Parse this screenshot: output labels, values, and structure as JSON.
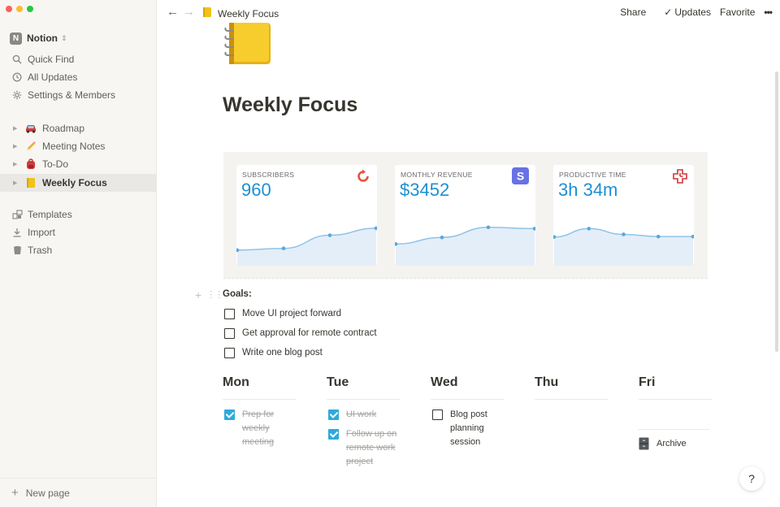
{
  "app": {
    "name": "Notion"
  },
  "window": {
    "controls": [
      "close",
      "minimize",
      "zoom"
    ],
    "control_colors": [
      "#ff5f57",
      "#febc2e",
      "#28c840"
    ]
  },
  "sidebar": {
    "workspace": {
      "initial": "N",
      "name": "Notion"
    },
    "nav": [
      {
        "label": "Quick Find",
        "icon": "search-icon"
      },
      {
        "label": "All Updates",
        "icon": "clock-icon"
      },
      {
        "label": "Settings & Members",
        "icon": "gear-icon"
      }
    ],
    "pages": [
      {
        "label": "Roadmap",
        "icon": "car-icon",
        "active": false
      },
      {
        "label": "Meeting Notes",
        "icon": "pencil-icon",
        "active": false
      },
      {
        "label": "To-Do",
        "icon": "backpack-icon",
        "active": false
      },
      {
        "label": "Weekly Focus",
        "icon": "notebook-icon",
        "active": true
      }
    ],
    "tools": [
      {
        "label": "Templates",
        "icon": "templates-icon"
      },
      {
        "label": "Import",
        "icon": "import-icon"
      },
      {
        "label": "Trash",
        "icon": "trash-icon"
      }
    ],
    "new_page": "New page"
  },
  "topbar": {
    "breadcrumb": "Weekly Focus",
    "share": "Share",
    "updates": "Updates",
    "favorite": "Favorite",
    "more": "•••"
  },
  "page": {
    "title": "Weekly Focus",
    "icon": "notebook-icon",
    "metrics": [
      {
        "label": "SUBSCRIBERS",
        "value": "960",
        "icon": "refresh-icon",
        "accent": "#e2533c",
        "trend": [
          0.28,
          0.32,
          0.62,
          0.78
        ]
      },
      {
        "label": "MONTHLY REVENUE",
        "value": "$3452",
        "icon": "stripe-icon",
        "accent": "#6772e5",
        "trend": [
          0.42,
          0.57,
          0.8,
          0.77
        ]
      },
      {
        "label": "PRODUCTIVE TIME",
        "value": "3h 34m",
        "icon": "rescuetime-icon",
        "accent": "#d0343a",
        "trend": [
          0.58,
          0.77,
          0.64,
          0.59,
          0.59
        ]
      }
    ],
    "goals": {
      "label": "Goals:",
      "items": [
        {
          "text": "Move UI project forward",
          "checked": false
        },
        {
          "text": "Get approval for remote contract",
          "checked": false
        },
        {
          "text": "Write one blog post",
          "checked": false
        }
      ]
    },
    "days": [
      {
        "name": "Mon",
        "tasks": [
          {
            "text": "Prep for weekly meeting",
            "checked": true
          }
        ]
      },
      {
        "name": "Tue",
        "tasks": [
          {
            "text": "UI work",
            "checked": true
          },
          {
            "text": "Follow up on remote work project",
            "checked": true
          }
        ]
      },
      {
        "name": "Wed",
        "tasks": [
          {
            "text": "Blog post planning session",
            "checked": false
          }
        ]
      },
      {
        "name": "Thu",
        "tasks": []
      },
      {
        "name": "Fri",
        "tasks": []
      }
    ],
    "archive": {
      "label": "Archive",
      "icon": "file-cabinet-icon"
    }
  },
  "help": {
    "label": "?"
  }
}
